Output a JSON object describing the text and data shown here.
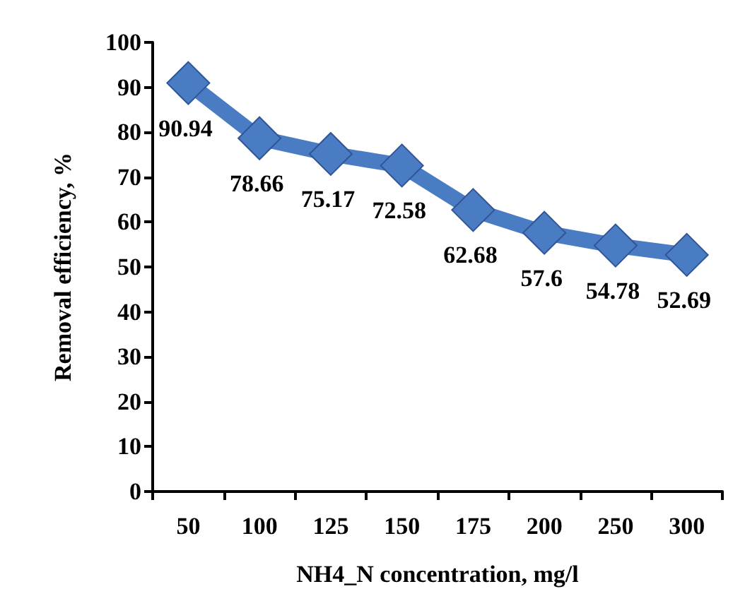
{
  "chart_data": {
    "type": "line",
    "xlabel": "NH4_N concentration, mg/l",
    "ylabel": "Removal efficiency, %",
    "categories": [
      "50",
      "100",
      "125",
      "150",
      "175",
      "200",
      "250",
      "300"
    ],
    "values": [
      90.94,
      78.66,
      75.17,
      72.58,
      62.68,
      57.6,
      54.78,
      52.69
    ],
    "color": "#4a7cc4",
    "marker": "diamond",
    "data_labels": true,
    "ylim": [
      0,
      100
    ],
    "yticks": [
      0,
      10,
      20,
      30,
      40,
      50,
      60,
      70,
      80,
      90,
      100
    ]
  }
}
